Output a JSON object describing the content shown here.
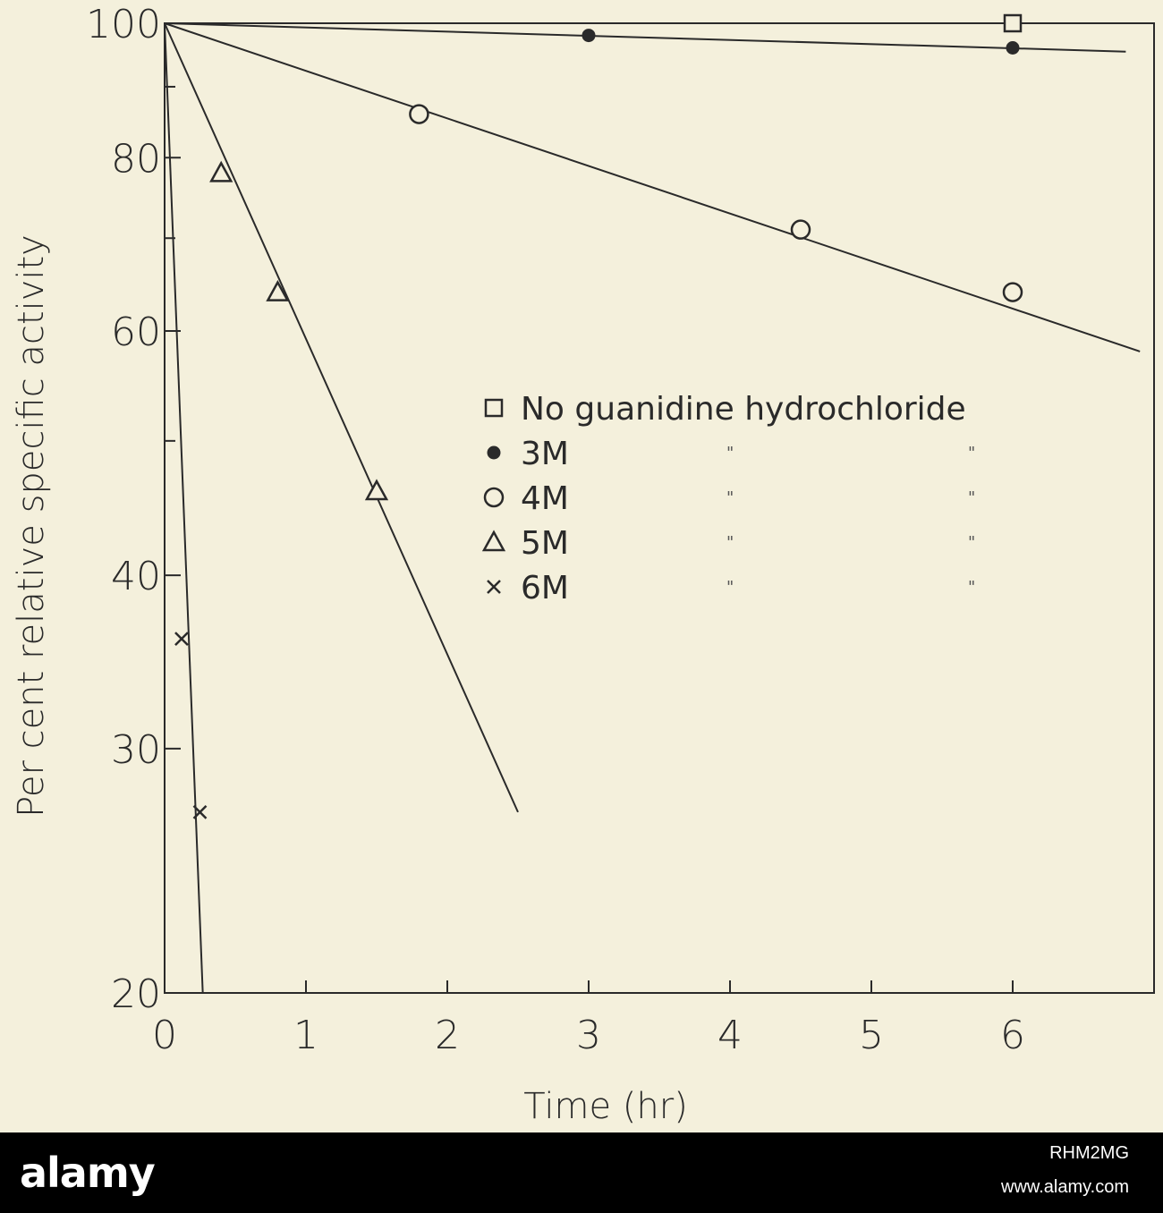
{
  "chart_data": {
    "type": "scatter",
    "title": "",
    "xlabel": "Time (hr)",
    "ylabel": "Per cent relative specific activity",
    "xlim": [
      0,
      7
    ],
    "ylim": [
      20,
      100
    ],
    "yscale": "log",
    "x_ticks": [
      0,
      1,
      2,
      3,
      4,
      5,
      6
    ],
    "x_tick_labels": [
      "0",
      "1",
      "2",
      "3",
      "4",
      "5",
      "6"
    ],
    "y_ticks": [
      20,
      30,
      40,
      60,
      80,
      100
    ],
    "y_tick_labels": [
      "20",
      "30",
      "40",
      "60",
      "80",
      "100"
    ],
    "legend_position": "center-right",
    "series": [
      {
        "name": "No guanidine hydrochloride",
        "legend_label": "No guanidine hydrochloride",
        "marker": "square-open",
        "x": [
          6
        ],
        "y": [
          100
        ],
        "fit_line": {
          "start": [
            0,
            100
          ],
          "end": [
            7,
            100
          ]
        }
      },
      {
        "name": "3M",
        "legend_label": "3M",
        "marker": "circle-filled",
        "x": [
          3,
          6
        ],
        "y": [
          98,
          96
        ],
        "fit_line": {
          "start": [
            0,
            100
          ],
          "end": [
            6.8,
            95.4
          ]
        }
      },
      {
        "name": "4M",
        "legend_label": "4M",
        "marker": "circle-open",
        "x": [
          1.8,
          4.5,
          6
        ],
        "y": [
          86,
          71,
          64
        ],
        "fit_line": {
          "start": [
            0,
            100
          ],
          "end": [
            6.9,
            58
          ]
        }
      },
      {
        "name": "5M",
        "legend_label": "5M",
        "marker": "triangle-open",
        "x": [
          0.4,
          0.8,
          1.5
        ],
        "y": [
          78,
          64,
          46
        ],
        "fit_line": {
          "start": [
            0,
            100
          ],
          "end": [
            2.5,
            27
          ]
        }
      },
      {
        "name": "6M",
        "legend_label": "6M",
        "marker": "cross",
        "x": [
          0.12,
          0.25
        ],
        "y": [
          36,
          27
        ],
        "fit_line": {
          "start": [
            0,
            100
          ],
          "end": [
            0.27,
            20
          ]
        }
      }
    ],
    "legend_ditto": "\""
  },
  "footer": {
    "brand": "alamy",
    "image_id": "RHM2MG",
    "site": "www.alamy.com"
  }
}
